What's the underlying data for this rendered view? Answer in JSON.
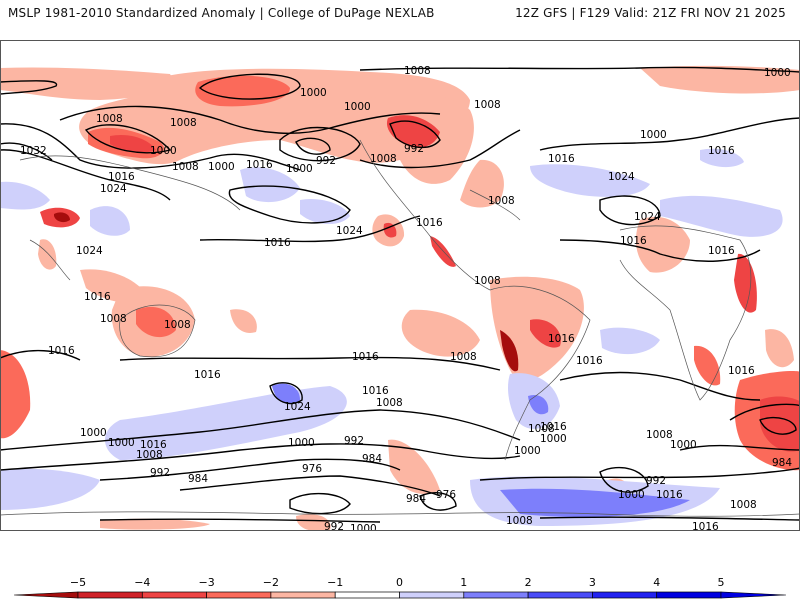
{
  "header": {
    "title_left": "MSLP 1981-2010 Standardized Anomaly | College of DuPage NEXLAB",
    "title_right": "12Z GFS | F129 Valid: 21Z FRI NOV 21 2025"
  },
  "colors": {
    "neg5": "#a50d0d",
    "neg4": "#cf2128",
    "neg3": "#ee4444",
    "neg2": "#fb6a5a",
    "neg1": "#fcb6a3",
    "zero": "#ffffff",
    "pos1": "#cfd0fb",
    "pos2": "#7d7ffb",
    "pos3": "#4a4cf7",
    "pos4": "#2222f0",
    "pos5": "#0000e0"
  },
  "colorbar": {
    "ticks": [
      "-5",
      "-4",
      "-3",
      "-2",
      "-1",
      "0",
      "1",
      "2",
      "3",
      "4",
      "5"
    ]
  },
  "isobar_labels": [
    {
      "id": "l1",
      "text": "1008"
    },
    {
      "id": "l2",
      "text": "1000"
    },
    {
      "id": "l3",
      "text": "1008"
    },
    {
      "id": "l4",
      "text": "1008"
    },
    {
      "id": "l5",
      "text": "1000"
    },
    {
      "id": "l6",
      "text": "1032"
    },
    {
      "id": "l7",
      "text": "1016"
    },
    {
      "id": "l8",
      "text": "1024"
    },
    {
      "id": "l9",
      "text": "1008"
    },
    {
      "id": "l10",
      "text": "1000"
    },
    {
      "id": "l11",
      "text": "1016"
    },
    {
      "id": "l12",
      "text": "1024"
    },
    {
      "id": "l13",
      "text": "1000"
    },
    {
      "id": "l14",
      "text": "1000"
    },
    {
      "id": "l15",
      "text": "992"
    },
    {
      "id": "l16",
      "text": "1000"
    },
    {
      "id": "l17",
      "text": "1008"
    },
    {
      "id": "l18",
      "text": "992"
    },
    {
      "id": "l19",
      "text": "1008"
    },
    {
      "id": "l20",
      "text": "1008"
    },
    {
      "id": "l21",
      "text": "1000"
    },
    {
      "id": "l22",
      "text": "1016"
    },
    {
      "id": "l23",
      "text": "1024"
    },
    {
      "id": "l24",
      "text": "1024"
    },
    {
      "id": "l25",
      "text": "1016"
    },
    {
      "id": "l26",
      "text": "1016"
    },
    {
      "id": "l27",
      "text": "1024"
    },
    {
      "id": "l28",
      "text": "1016"
    },
    {
      "id": "l29",
      "text": "1016"
    },
    {
      "id": "l30",
      "text": "1016"
    },
    {
      "id": "l31",
      "text": "1008"
    },
    {
      "id": "l32",
      "text": "1008"
    },
    {
      "id": "l33",
      "text": "1008"
    },
    {
      "id": "l34",
      "text": "1016"
    },
    {
      "id": "l35",
      "text": "1016"
    },
    {
      "id": "l36",
      "text": "1016"
    },
    {
      "id": "l37",
      "text": "1016"
    },
    {
      "id": "l38",
      "text": "1008"
    },
    {
      "id": "l39",
      "text": "1016"
    },
    {
      "id": "l40",
      "text": "1016"
    },
    {
      "id": "l41",
      "text": "1016"
    },
    {
      "id": "l42",
      "text": "1000"
    },
    {
      "id": "l43",
      "text": "1016"
    },
    {
      "id": "l44",
      "text": "1008"
    },
    {
      "id": "l45",
      "text": "1024"
    },
    {
      "id": "l46",
      "text": "1016"
    },
    {
      "id": "l47",
      "text": "1008"
    },
    {
      "id": "l48",
      "text": "1000"
    },
    {
      "id": "l49",
      "text": "992"
    },
    {
      "id": "l50",
      "text": "984"
    },
    {
      "id": "l51",
      "text": "976"
    },
    {
      "id": "l52",
      "text": "1000"
    },
    {
      "id": "l53",
      "text": "992"
    },
    {
      "id": "l54",
      "text": "984"
    },
    {
      "id": "l55",
      "text": "984"
    },
    {
      "id": "l56",
      "text": "976"
    },
    {
      "id": "l57",
      "text": "992"
    },
    {
      "id": "l58",
      "text": "1000"
    },
    {
      "id": "l59",
      "text": "1008"
    },
    {
      "id": "l60",
      "text": "1000"
    },
    {
      "id": "l61",
      "text": "984"
    },
    {
      "id": "l62",
      "text": "1008"
    },
    {
      "id": "l63",
      "text": "1000"
    },
    {
      "id": "l64",
      "text": "992"
    },
    {
      "id": "l65",
      "text": "1000"
    },
    {
      "id": "l66",
      "text": "1016"
    },
    {
      "id": "l67",
      "text": "1008"
    },
    {
      "id": "l68",
      "text": "1016"
    },
    {
      "id": "l69",
      "text": "1008"
    },
    {
      "id": "l70",
      "text": "1000"
    },
    {
      "id": "l71",
      "text": "1016"
    }
  ]
}
